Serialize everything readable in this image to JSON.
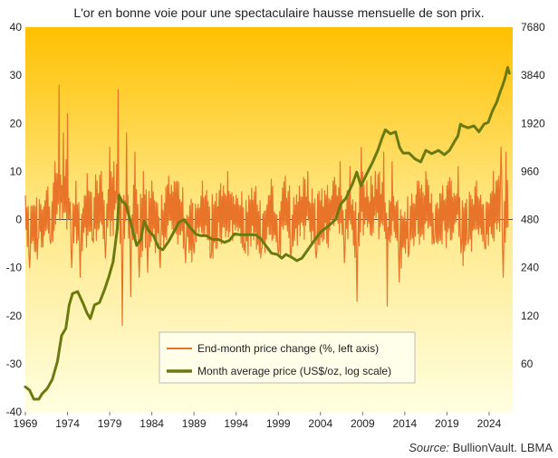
{
  "chart_data": {
    "type": "line",
    "title": "L'or en bonne voie pour une spectaculaire hausse mensuelle de son prix.",
    "source_label": "Source:",
    "source_value": "BullionVault. LBMA",
    "x_ticks": [
      "1969",
      "1974",
      "1979",
      "1984",
      "1989",
      "1994",
      "1999",
      "2004",
      "2009",
      "2014",
      "2019",
      "2024"
    ],
    "xlim": [
      1969,
      2026.8
    ],
    "y_left": {
      "lim": [
        -40,
        40
      ],
      "ticks": [
        "40",
        "30",
        "20",
        "10",
        "0",
        "-10",
        "-20",
        "-30",
        "-40"
      ],
      "values": [
        40,
        30,
        20,
        10,
        0,
        -10,
        -20,
        -30,
        -40
      ]
    },
    "y_right": {
      "scale": "log",
      "lim": [
        30,
        7680
      ],
      "ticks": [
        "7680",
        "3840",
        "1920",
        "960",
        "480",
        "240",
        "120",
        "60"
      ],
      "values": [
        7680,
        3840,
        1920,
        960,
        480,
        240,
        120,
        60
      ]
    },
    "colors": {
      "change": "#e8742a",
      "price": "#6b7a10",
      "bg_top": "#ffc000",
      "bg_bottom": "#ffffe0"
    },
    "series": [
      {
        "name": "End-month price change (%, left axis)",
        "axis": "left",
        "anchors_x": [
          1969.0,
          1969.5,
          1970.0,
          1970.5,
          1971.0,
          1971.5,
          1972.0,
          1972.5,
          1973.0,
          1973.5,
          1974.0,
          1974.5,
          1975.0,
          1975.5,
          1976.0,
          1976.5,
          1977.0,
          1977.5,
          1978.0,
          1978.5,
          1979.0,
          1979.5,
          1980.0,
          1980.5,
          1981.0,
          1981.5,
          1982.0,
          1982.5,
          1983.0,
          1983.5,
          1984.0,
          1985.0,
          1986.0,
          1987.0,
          1988.0,
          1989.0,
          1990.0,
          1991.0,
          1992.0,
          1993.0,
          1994.0,
          1995.0,
          1996.0,
          1997.0,
          1998.0,
          1999.0,
          1999.8,
          2000.5,
          2001.5,
          2002.5,
          2003.5,
          2004.5,
          2005.5,
          2006.3,
          2006.8,
          2007.5,
          2008.3,
          2008.8,
          2009.5,
          2010.5,
          2011.5,
          2011.9,
          2012.5,
          2013.3,
          2014.5,
          2015.5,
          2016.5,
          2017.5,
          2018.5,
          2019.5,
          2020.3,
          2020.7,
          2021.5,
          2022.5,
          2023.5,
          2024.5,
          2025.2,
          2025.4,
          2025.7,
          2026.0,
          2026.3
        ],
        "anchors_y": [
          5,
          -10,
          3,
          -4,
          2,
          6,
          -5,
          12,
          28,
          18,
          22,
          -10,
          8,
          -12,
          5,
          6,
          -4,
          8,
          10,
          -8,
          15,
          12,
          27,
          -22,
          18,
          -16,
          14,
          -12,
          10,
          -11,
          8,
          -10,
          9,
          8,
          -9,
          -7,
          8,
          -8,
          6,
          10,
          5,
          -5,
          4,
          -6,
          5,
          -7,
          9,
          -8,
          7,
          10,
          -8,
          6,
          8,
          12,
          -9,
          11,
          -17,
          15,
          8,
          10,
          14,
          -18,
          12,
          -13,
          -7,
          8,
          10,
          -5,
          7,
          8,
          11,
          -7,
          -5,
          8,
          -6,
          10,
          9,
          15,
          -12,
          14,
          2
        ]
      },
      {
        "name": "Month average price (US$/oz, log scale)",
        "axis": "right",
        "x": [
          1969.0,
          1969.5,
          1970.0,
          1970.6,
          1971.0,
          1971.6,
          1972.2,
          1972.8,
          1973.3,
          1973.8,
          1974.2,
          1974.6,
          1975.2,
          1975.8,
          1976.3,
          1976.7,
          1977.2,
          1977.8,
          1978.4,
          1978.9,
          1979.4,
          1979.9,
          1980.1,
          1980.5,
          1980.9,
          1981.5,
          1982.2,
          1982.7,
          1983.1,
          1983.6,
          1984.2,
          1984.8,
          1985.3,
          1986.0,
          1986.7,
          1987.2,
          1987.8,
          1988.5,
          1989.2,
          1989.8,
          1990.5,
          1991.2,
          1991.9,
          1992.6,
          1993.2,
          1993.8,
          1994.5,
          1995.5,
          1996.3,
          1996.9,
          1997.5,
          1998.2,
          1998.9,
          1999.4,
          1999.9,
          2000.5,
          2001.2,
          2001.8,
          2002.5,
          2003.2,
          2004.0,
          2005.0,
          2005.8,
          2006.4,
          2007.0,
          2007.8,
          2008.3,
          2008.8,
          2009.5,
          2010.2,
          2010.8,
          2011.3,
          2011.7,
          2012.3,
          2012.9,
          2013.4,
          2013.8,
          2014.5,
          2015.2,
          2015.9,
          2016.5,
          2017.2,
          2018.0,
          2018.7,
          2019.3,
          2019.9,
          2020.3,
          2020.6,
          2020.9,
          2021.5,
          2022.2,
          2022.8,
          2023.4,
          2023.9,
          2024.4,
          2024.9,
          2025.3,
          2025.6,
          2025.9,
          2026.2,
          2026.4
        ],
        "y": [
          43,
          41,
          36,
          36,
          39,
          42,
          48,
          62,
          90,
          100,
          140,
          165,
          170,
          145,
          125,
          115,
          140,
          145,
          175,
          210,
          260,
          420,
          680,
          620,
          600,
          460,
          330,
          360,
          470,
          410,
          380,
          320,
          310,
          350,
          410,
          460,
          480,
          430,
          390,
          380,
          380,
          360,
          360,
          345,
          355,
          390,
          385,
          385,
          385,
          365,
          330,
          295,
          290,
          275,
          290,
          280,
          265,
          275,
          310,
          350,
          400,
          440,
          480,
          600,
          650,
          800,
          950,
          780,
          930,
          1100,
          1300,
          1550,
          1750,
          1650,
          1700,
          1350,
          1250,
          1250,
          1150,
          1100,
          1300,
          1240,
          1300,
          1220,
          1300,
          1480,
          1600,
          1900,
          1850,
          1800,
          1850,
          1700,
          1900,
          1950,
          2300,
          2600,
          3000,
          3300,
          3700,
          4300,
          3950
        ]
      }
    ]
  }
}
